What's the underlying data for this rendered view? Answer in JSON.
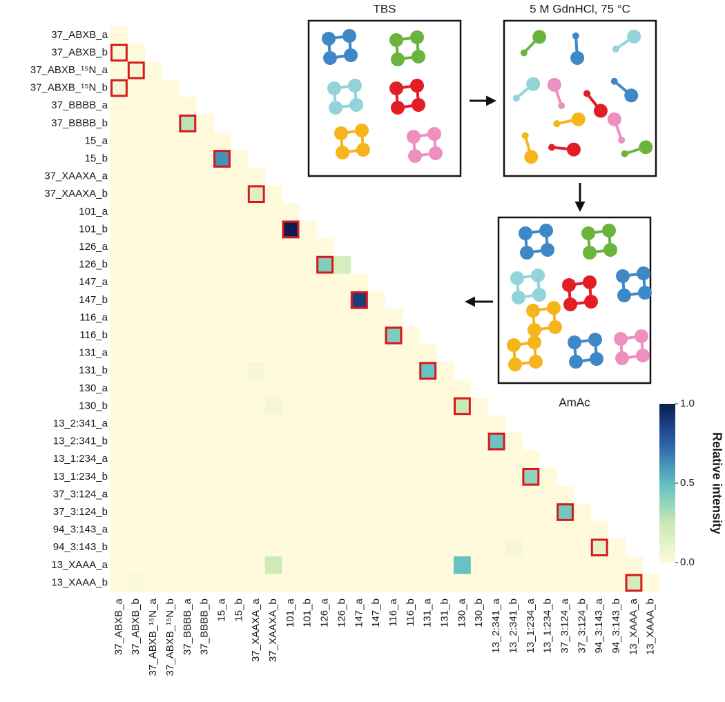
{
  "chart_data": {
    "type": "heatmap",
    "categories": [
      "37_ABXB_a",
      "37_ABXB_b",
      "37_ABXB_¹⁵N_a",
      "37_ABXB_¹⁵N_b",
      "37_BBBB_a",
      "37_BBBB_b",
      "15_a",
      "15_b",
      "37_XAAXA_a",
      "37_XAAXA_b",
      "101_a",
      "101_b",
      "126_a",
      "126_b",
      "147_a",
      "147_b",
      "116_a",
      "116_b",
      "131_a",
      "131_b",
      "130_a",
      "130_b",
      "13_2:341_a",
      "13_2:341_b",
      "13_1:234_a",
      "13_1:234_b",
      "37_3:124_a",
      "37_3:124_b",
      "94_3:143_a",
      "94_3:143_b",
      "13_XAAA_a",
      "13_XAAA_b"
    ],
    "values": [
      [
        0
      ],
      [
        0.02,
        0
      ],
      [
        0,
        0.06,
        0
      ],
      [
        0.06,
        0,
        0,
        0
      ],
      [
        0,
        0,
        0,
        0,
        0
      ],
      [
        0,
        0,
        0,
        0,
        0.28,
        0
      ],
      [
        0,
        0,
        0,
        0,
        0,
        0,
        0
      ],
      [
        0,
        0,
        0,
        0,
        0,
        0,
        0.62,
        0
      ],
      [
        0,
        0,
        0,
        0,
        0,
        0,
        0,
        0,
        0
      ],
      [
        0,
        0,
        0,
        0,
        0,
        0,
        0,
        0,
        0.15,
        0
      ],
      [
        0,
        0,
        0,
        0,
        0,
        0,
        0,
        0,
        0,
        0,
        0
      ],
      [
        0,
        0,
        0,
        0,
        0,
        0,
        0,
        0,
        0,
        0,
        1.0,
        0
      ],
      [
        0,
        0,
        0,
        0,
        0,
        0,
        0,
        0,
        0,
        0,
        0,
        0,
        0
      ],
      [
        0,
        0,
        0,
        0,
        0,
        0,
        0,
        0,
        0,
        0,
        0,
        0,
        0.42,
        0.18
      ],
      [
        0,
        0,
        0,
        0,
        0,
        0,
        0,
        0,
        0,
        0,
        0,
        0,
        0,
        0,
        0
      ],
      [
        0,
        0,
        0,
        0,
        0,
        0,
        0,
        0,
        0,
        0,
        0,
        0,
        0,
        0,
        0.88,
        0
      ],
      [
        0,
        0,
        0,
        0,
        0,
        0,
        0,
        0,
        0,
        0,
        0,
        0,
        0,
        0,
        0,
        0,
        0
      ],
      [
        0,
        0,
        0,
        0,
        0,
        0,
        0,
        0,
        0,
        0,
        0,
        0,
        0,
        0,
        0,
        0,
        0.42,
        0
      ],
      [
        0,
        0,
        0,
        0,
        0,
        0,
        0,
        0,
        0,
        0,
        0,
        0,
        0,
        0,
        0,
        0,
        0,
        0,
        0
      ],
      [
        0,
        0,
        0,
        0,
        0,
        0,
        0,
        0,
        0.04,
        0,
        0,
        0,
        0,
        0,
        0,
        0,
        0,
        0,
        0.48,
        0
      ],
      [
        0,
        0,
        0,
        0,
        0,
        0,
        0,
        0,
        0,
        0,
        0,
        0,
        0,
        0,
        0,
        0,
        0,
        0,
        0,
        0,
        0
      ],
      [
        0,
        0,
        0,
        0,
        0,
        0,
        0,
        0,
        0,
        0.05,
        0,
        0,
        0,
        0,
        0,
        0,
        0,
        0,
        0,
        0,
        0.25,
        0
      ],
      [
        0,
        0,
        0,
        0,
        0,
        0,
        0,
        0,
        0,
        0,
        0,
        0,
        0,
        0,
        0,
        0,
        0,
        0,
        0,
        0,
        0,
        0,
        0
      ],
      [
        0,
        0,
        0,
        0,
        0,
        0,
        0,
        0,
        0,
        0,
        0,
        0,
        0,
        0,
        0,
        0,
        0,
        0,
        0,
        0,
        0,
        0,
        0.47,
        0
      ],
      [
        0,
        0,
        0,
        0,
        0,
        0,
        0,
        0,
        0,
        0,
        0,
        0,
        0,
        0,
        0,
        0,
        0,
        0,
        0,
        0,
        0,
        0,
        0,
        0,
        0
      ],
      [
        0,
        0,
        0,
        0,
        0,
        0,
        0,
        0,
        0,
        0,
        0,
        0,
        0,
        0,
        0,
        0,
        0,
        0,
        0,
        0,
        0,
        0,
        0,
        0,
        0.38,
        0
      ],
      [
        0,
        0,
        0,
        0,
        0,
        0,
        0,
        0,
        0,
        0,
        0,
        0,
        0,
        0,
        0,
        0,
        0,
        0,
        0,
        0,
        0,
        0,
        0,
        0,
        0,
        0,
        0
      ],
      [
        0,
        0,
        0,
        0,
        0,
        0,
        0,
        0,
        0,
        0,
        0,
        0,
        0,
        0,
        0,
        0,
        0,
        0,
        0,
        0,
        0,
        0,
        0,
        0,
        0,
        0,
        0.45,
        0
      ],
      [
        0,
        0,
        0,
        0,
        0,
        0,
        0,
        0,
        0,
        0,
        0,
        0,
        0,
        0,
        0,
        0,
        0,
        0,
        0,
        0,
        0,
        0,
        0,
        0,
        0,
        0,
        0,
        0,
        0
      ],
      [
        0,
        0,
        0,
        0,
        0,
        0,
        0,
        0,
        0,
        0,
        0,
        0,
        0,
        0,
        0,
        0,
        0,
        0,
        0,
        0,
        0,
        0,
        0,
        0.04,
        0,
        0,
        0,
        0,
        0.12,
        0
      ],
      [
        0,
        0,
        0,
        0,
        0,
        0,
        0,
        0,
        0,
        0.22,
        0,
        0,
        0,
        0,
        0,
        0,
        0,
        0,
        0,
        0,
        0.48,
        0,
        0,
        0,
        0,
        0,
        0,
        0,
        0,
        0,
        0
      ],
      [
        0,
        0.03,
        0,
        0,
        0,
        0,
        0,
        0,
        0,
        0,
        0,
        0,
        0,
        0,
        0,
        0,
        0,
        0,
        0,
        0,
        0,
        0,
        0,
        0,
        0,
        0,
        0,
        0,
        0,
        0,
        0.2,
        0
      ]
    ],
    "highlights": [
      [
        1,
        0
      ],
      [
        2,
        1
      ],
      [
        3,
        0
      ],
      [
        5,
        4
      ],
      [
        7,
        6
      ],
      [
        9,
        8
      ],
      [
        11,
        10
      ],
      [
        13,
        12
      ],
      [
        15,
        14
      ],
      [
        17,
        16
      ],
      [
        19,
        18
      ],
      [
        21,
        20
      ],
      [
        23,
        22
      ],
      [
        25,
        24
      ],
      [
        27,
        26
      ],
      [
        29,
        28
      ],
      [
        31,
        30
      ]
    ],
    "highlight_color": "#d7191c",
    "colors": [
      "#fffadc",
      "#c9e8b4",
      "#5ebfc4",
      "#2a60aa",
      "#0b1c52"
    ],
    "colorbar_label": "Relative intensity",
    "clim": [
      0,
      1
    ],
    "cticks": [
      {
        "value": 0,
        "label": "0.0"
      },
      0.5,
      {
        "value": 1,
        "label": "1.0"
      }
    ]
  },
  "schematic": {
    "labels": [
      "TBS",
      "5 M GdnHCl, 75 °C",
      "AmAc"
    ]
  }
}
